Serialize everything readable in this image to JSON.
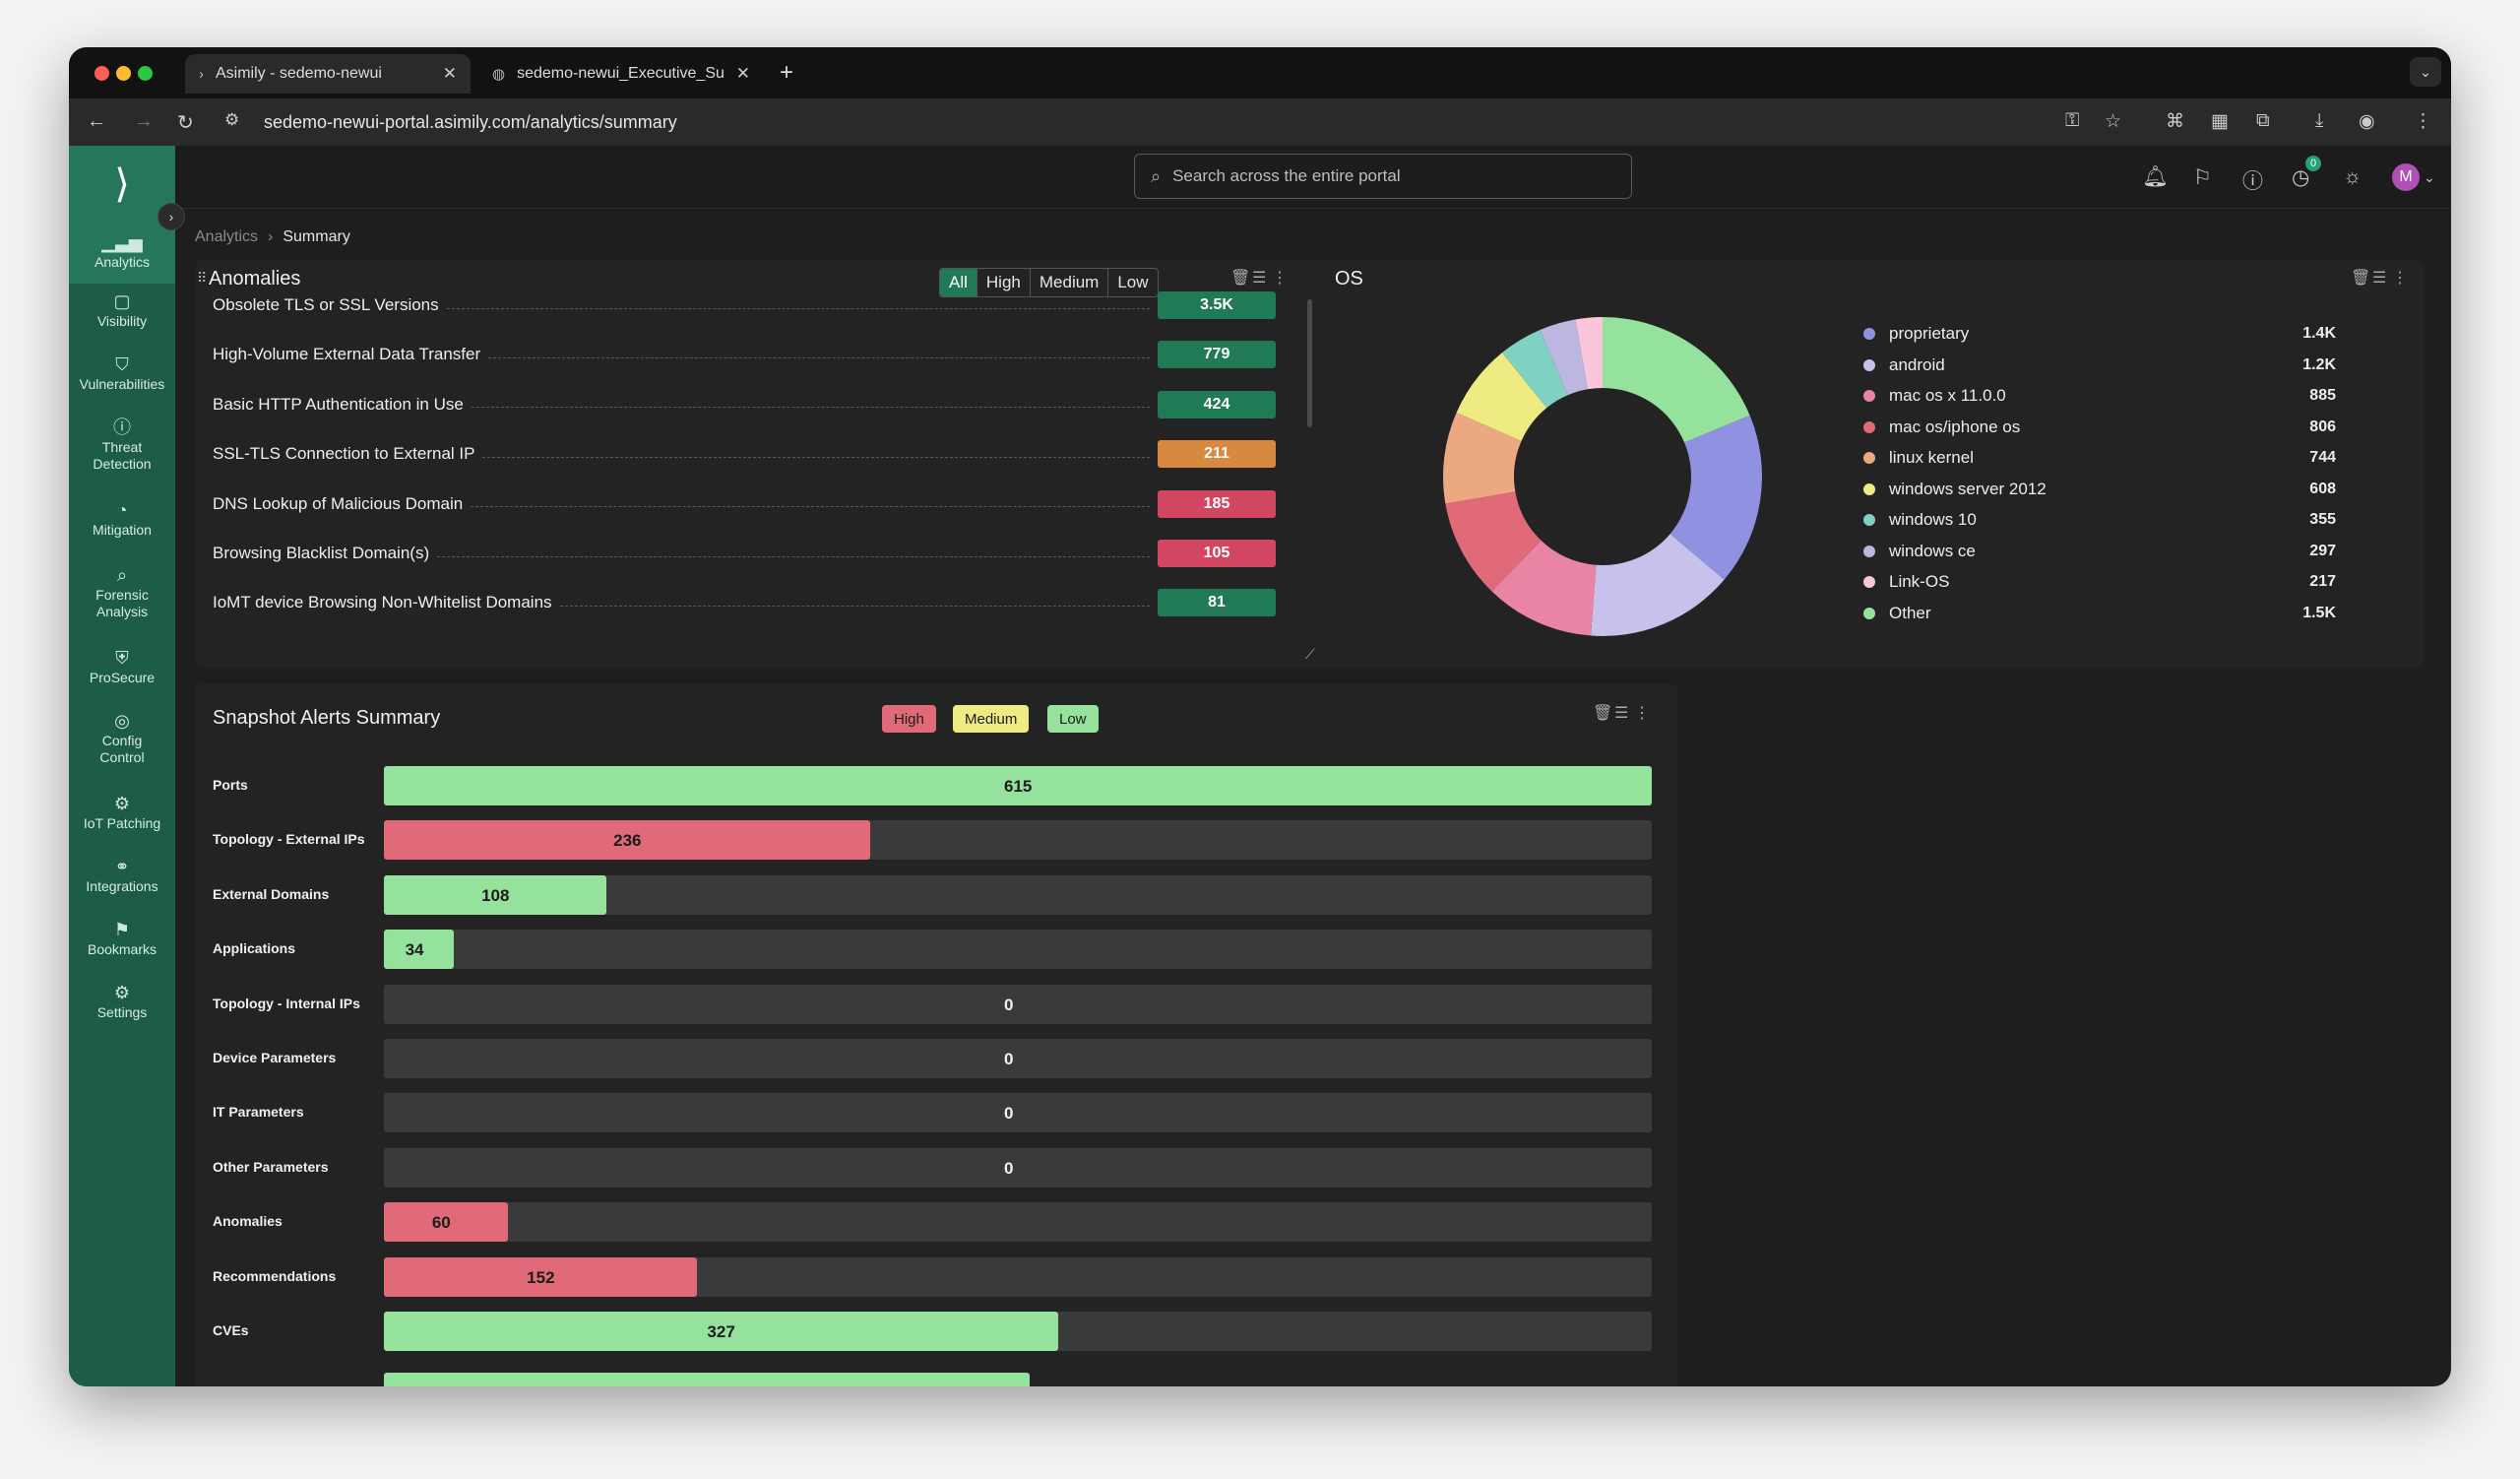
{
  "browser": {
    "tabs": [
      {
        "title": "Asimily - sedemo-newui",
        "active": true
      },
      {
        "title": "sedemo-newui_Executive_Su",
        "active": false
      }
    ],
    "url": "sedemo-newui-portal.asimily.com/analytics/summary"
  },
  "sidebar": {
    "items": [
      {
        "label": "Analytics",
        "icon": "analytics-icon",
        "active": true
      },
      {
        "label": "Visibility",
        "icon": "visibility-icon"
      },
      {
        "label": "Vulnerabilities",
        "icon": "shield-icon"
      },
      {
        "label": "Threat Detection",
        "icon": "alert-icon"
      },
      {
        "label": "Mitigation",
        "icon": "mitigation-icon"
      },
      {
        "label": "Forensic Analysis",
        "icon": "search-icon"
      },
      {
        "label": "ProSecure",
        "icon": "prosecure-icon"
      },
      {
        "label": "Config Control",
        "icon": "config-icon"
      },
      {
        "label": "IoT Patching",
        "icon": "patch-icon"
      },
      {
        "label": "Integrations",
        "icon": "link-icon"
      },
      {
        "label": "Bookmarks",
        "icon": "bookmark-icon"
      },
      {
        "label": "Settings",
        "icon": "gear-icon"
      }
    ]
  },
  "header": {
    "search_placeholder": "Search across the entire portal",
    "notification_count": "0",
    "avatar_initial": "M"
  },
  "breadcrumb": {
    "parent": "Analytics",
    "current": "Summary"
  },
  "anomalies": {
    "title": "Anomalies",
    "filters": [
      "All",
      "High",
      "Medium",
      "Low"
    ],
    "selected_filter": "All",
    "rows": [
      {
        "label": "Obsolete TLS or SSL Versions",
        "value": "3.5K",
        "color": "#1f7a55"
      },
      {
        "label": "High-Volume External Data Transfer",
        "value": "779",
        "color": "#1f7a55"
      },
      {
        "label": "Basic HTTP Authentication in Use",
        "value": "424",
        "color": "#1f7a55"
      },
      {
        "label": "SSL-TLS Connection to External IP",
        "value": "211",
        "color": "#d8893f"
      },
      {
        "label": "DNS Lookup of Malicious Domain",
        "value": "185",
        "color": "#d24661"
      },
      {
        "label": "Browsing Blacklist Domain(s)",
        "value": "105",
        "color": "#d24661"
      },
      {
        "label": "IoMT device Browsing Non-Whitelist Domains",
        "value": "81",
        "color": "#1f7a55"
      }
    ]
  },
  "os": {
    "title": "OS",
    "legend": [
      {
        "label": "proprietary",
        "value": "1.4K",
        "color": "#9091e0"
      },
      {
        "label": "android",
        "value": "1.2K",
        "color": "#c7c1ec"
      },
      {
        "label": "mac os x 11.0.0",
        "value": "885",
        "color": "#e984a4"
      },
      {
        "label": "mac os/iphone os",
        "value": "806",
        "color": "#e06a78"
      },
      {
        "label": "linux kernel",
        "value": "744",
        "color": "#eca881"
      },
      {
        "label": "windows server 2012",
        "value": "608",
        "color": "#eeeb83"
      },
      {
        "label": "windows 10",
        "value": "355",
        "color": "#7fd1c2"
      },
      {
        "label": "windows ce",
        "value": "297",
        "color": "#bbb7e1"
      },
      {
        "label": "Link-OS",
        "value": "217",
        "color": "#f9c6dc"
      },
      {
        "label": "Other",
        "value": "1.5K",
        "color": "#95e29c"
      }
    ]
  },
  "chart_data": {
    "type": "pie",
    "categories": [
      "proprietary",
      "android",
      "mac os x 11.0.0",
      "mac os/iphone os",
      "linux kernel",
      "windows server 2012",
      "windows 10",
      "windows ce",
      "Link-OS",
      "Other"
    ],
    "values": [
      1400,
      1200,
      885,
      806,
      744,
      608,
      355,
      297,
      217,
      1500
    ],
    "title": "OS"
  },
  "snapshot": {
    "title": "Snapshot Alerts Summary",
    "legend": [
      {
        "label": "High",
        "color": "#e06a78"
      },
      {
        "label": "Medium",
        "color": "#eeeb83"
      },
      {
        "label": "Low",
        "color": "#95e29c"
      }
    ],
    "max": 615,
    "rows": [
      {
        "label": "Ports",
        "value": 615,
        "color": "#95e29c"
      },
      {
        "label": "Topology - External IPs",
        "value": 236,
        "color": "#e06a78"
      },
      {
        "label": "External Domains",
        "value": 108,
        "color": "#95e29c"
      },
      {
        "label": "Applications",
        "value": 34,
        "color": "#95e29c"
      },
      {
        "label": "Topology - Internal IPs",
        "value": 0,
        "color": "#3a3a3a"
      },
      {
        "label": "Device Parameters",
        "value": 0,
        "color": "#3a3a3a"
      },
      {
        "label": "IT Parameters",
        "value": 0,
        "color": "#3a3a3a"
      },
      {
        "label": "Other Parameters",
        "value": 0,
        "color": "#3a3a3a"
      },
      {
        "label": "Anomalies",
        "value": 60,
        "color": "#e06a78"
      },
      {
        "label": "Recommendations",
        "value": 152,
        "color": "#e06a78"
      },
      {
        "label": "CVEs",
        "value": 327,
        "color": "#95e29c"
      }
    ]
  }
}
